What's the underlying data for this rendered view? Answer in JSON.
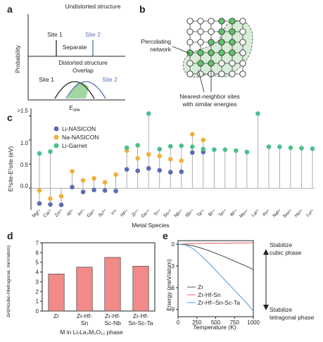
{
  "panel_a": {
    "label": "a",
    "title_top": "Undistorted structure",
    "site1_top": "Site 1",
    "site2_top": "Site 2",
    "separate": "Separate",
    "title_bottom": "Distorted structure",
    "overlap": "Overlap",
    "site1_bottom": "Site 1",
    "site2_bottom": "Site 2",
    "ylabel": "Probability",
    "xlabel": "E",
    "xlabel_sub": "site"
  },
  "panel_b": {
    "label": "b",
    "percolating": "Percolating",
    "network": "network",
    "nn_line1": "Nearest-neighbor sites",
    "nn_line2": "with similar energies"
  },
  "colors": {
    "nasicon_li": "#5b6db3",
    "nasicon_na": "#f0b03a",
    "garnet_li": "#4cc08a",
    "bar_fill": "#f28a8a",
    "zr": "#555555",
    "zrhfsn": "#e86a6a",
    "zrhfscta": "#5aa0e6",
    "grid_green": "#8fd08f"
  },
  "panel_c": {
    "label": "c",
    "legend": [
      "Li-NASICON",
      "Na-NASICON",
      "Li-Garnet"
    ],
    "xlabel": "Metal Species",
    "ylabel": "E²site-E¹site (eV)",
    "ymax_label": ">1.5",
    "yticks": [
      "1.0",
      "0.5",
      "0.0"
    ],
    "ions": [
      "Mg²⁺",
      "Ca²⁺",
      "Zn²⁺",
      "Al³⁺",
      "In³⁺",
      "Ga³⁺",
      "Sc³⁺",
      "Y³⁺",
      "Hf⁴⁺",
      "Zr⁴⁺",
      "Ge⁴⁺",
      "Ti⁴⁺",
      "Sn⁴⁺",
      "Nb⁵⁺",
      "Sb⁵⁺",
      "Ta⁵⁺",
      "Bi⁵⁺",
      "Te⁶⁺",
      "W⁶⁺",
      "Mo⁶⁺",
      "La³⁺",
      "Pr³⁺",
      "Nd³⁺",
      "Sm³⁺",
      "Ho³⁺",
      "Lu³⁺"
    ]
  },
  "chart_data": [
    {
      "type": "scatter",
      "panel": "c",
      "xlabel": "Metal Species",
      "ylabel": "E²site-E¹site (eV)",
      "ylim": [
        -0.45,
        1.6
      ],
      "categories": [
        "Mg²⁺",
        "Ca²⁺",
        "Zn²⁺",
        "Al³⁺",
        "In³⁺",
        "Ga³⁺",
        "Sc³⁺",
        "Y³⁺",
        "Hf⁴⁺",
        "Zr⁴⁺",
        "Ge⁴⁺",
        "Ti⁴⁺",
        "Sn⁴⁺",
        "Nb⁵⁺",
        "Sb⁵⁺",
        "Ta⁵⁺",
        "Bi⁵⁺",
        "Te⁶⁺",
        "W⁶⁺",
        "Mo⁶⁺",
        "La³⁺",
        "Pr³⁺",
        "Nd³⁺",
        "Sm³⁺",
        "Ho³⁺",
        "Lu³⁺"
      ],
      "series": [
        {
          "name": "Li-NASICON",
          "values": [
            -0.32,
            -0.34,
            -0.35,
            0.02,
            -0.08,
            -0.04,
            -0.05,
            -0.06,
            0.39,
            0.36,
            0.41,
            0.37,
            0.33,
            0.34,
            0.74,
            0.75,
            null,
            null,
            null,
            null,
            null,
            null,
            null,
            null,
            null,
            null
          ]
        },
        {
          "name": "Na-NASICON",
          "values": [
            -0.05,
            -0.22,
            -0.17,
            0.35,
            0.16,
            0.2,
            0.12,
            0.28,
            0.78,
            0.62,
            0.7,
            0.67,
            0.6,
            0.57,
            1.12,
            1.0,
            null,
            null,
            null,
            null,
            null,
            null,
            null,
            null,
            null,
            null
          ]
        },
        {
          "name": "Li-Garnet",
          "values": [
            0.72,
            0.76,
            null,
            null,
            null,
            null,
            null,
            null,
            0.84,
            0.89,
            1.55,
            0.81,
            0.87,
            0.88,
            0.86,
            0.81,
            0.8,
            0.8,
            0.78,
            0.75,
            1.55,
            0.86,
            0.86,
            0.84,
            0.83,
            0.82
          ]
        }
      ]
    },
    {
      "type": "bar",
      "panel": "d",
      "title": "",
      "xlabel": "M in Li7La3M2O12 phase",
      "ylabel": "ΔH(Hcubic-Htetragonal, meV/atom)",
      "categories": [
        "Zr",
        "Zr-Hf-Sn",
        "Zr-Hf-Sc-Nb",
        "Zr-Hf-Sn-Sc-Ta"
      ],
      "values": [
        3.8,
        4.5,
        5.5,
        4.6
      ],
      "ylim": [
        0,
        7
      ],
      "yticks": [
        0,
        1,
        2,
        3,
        4,
        5,
        6,
        7
      ]
    },
    {
      "type": "line",
      "panel": "e",
      "xlabel": "Temperature (K)",
      "ylabel": "Energy (meV/atom)",
      "xlim": [
        0,
        1000
      ],
      "ylim": [
        -10,
        0.5
      ],
      "x": [
        0,
        100,
        200,
        300,
        400,
        500,
        600,
        700,
        800,
        900,
        1000
      ],
      "series": [
        {
          "name": "Zr",
          "values": [
            0,
            -0.05,
            -0.2,
            -0.5,
            -0.85,
            -1.25,
            -1.65,
            -2.1,
            -2.55,
            -3.0,
            -3.5
          ]
        },
        {
          "name": "Zr-Hf-Sn",
          "values": [
            0,
            0.05,
            0.1,
            0.12,
            0.14,
            0.15,
            0.16,
            0.17,
            0.18,
            0.19,
            0.2
          ]
        },
        {
          "name": "Zr-Hf-Sn-Sc-Ta",
          "values": [
            0,
            -0.1,
            -0.6,
            -1.5,
            -2.5,
            -3.6,
            -4.7,
            -5.8,
            -6.9,
            -8.0,
            -9.2
          ]
        }
      ],
      "yticks": [
        0,
        -3,
        -6,
        -9
      ],
      "xticks": [
        0,
        250,
        500,
        750,
        1000
      ]
    }
  ],
  "panel_d": {
    "label": "d",
    "ylabel": "ΔH(Hcubic-Htetragonal, meV/atom)",
    "xlabel": "M in Li₇La₃M₂O₁₂ phase",
    "cat_lines": [
      [
        "Zr"
      ],
      [
        "Zr-Hf-",
        "Sn"
      ],
      [
        "Zr-Hf-",
        "Sc-Nb"
      ],
      [
        "Zr-Hf-",
        "Sn-Sc-Ta"
      ]
    ]
  },
  "panel_e": {
    "label": "e",
    "ylabel": "Energy (meV/atom)",
    "xlabel": "Temperature (K)",
    "legend": [
      "Zr",
      "Zr-Hf-Sn",
      "Zr-Hf--Sn-Sc-Ta"
    ],
    "arrow_top_1": "Stabilize",
    "arrow_top_2": "cubic phase",
    "arrow_bot_1": "Stabilize",
    "arrow_bot_2": "tetragonal phase"
  }
}
